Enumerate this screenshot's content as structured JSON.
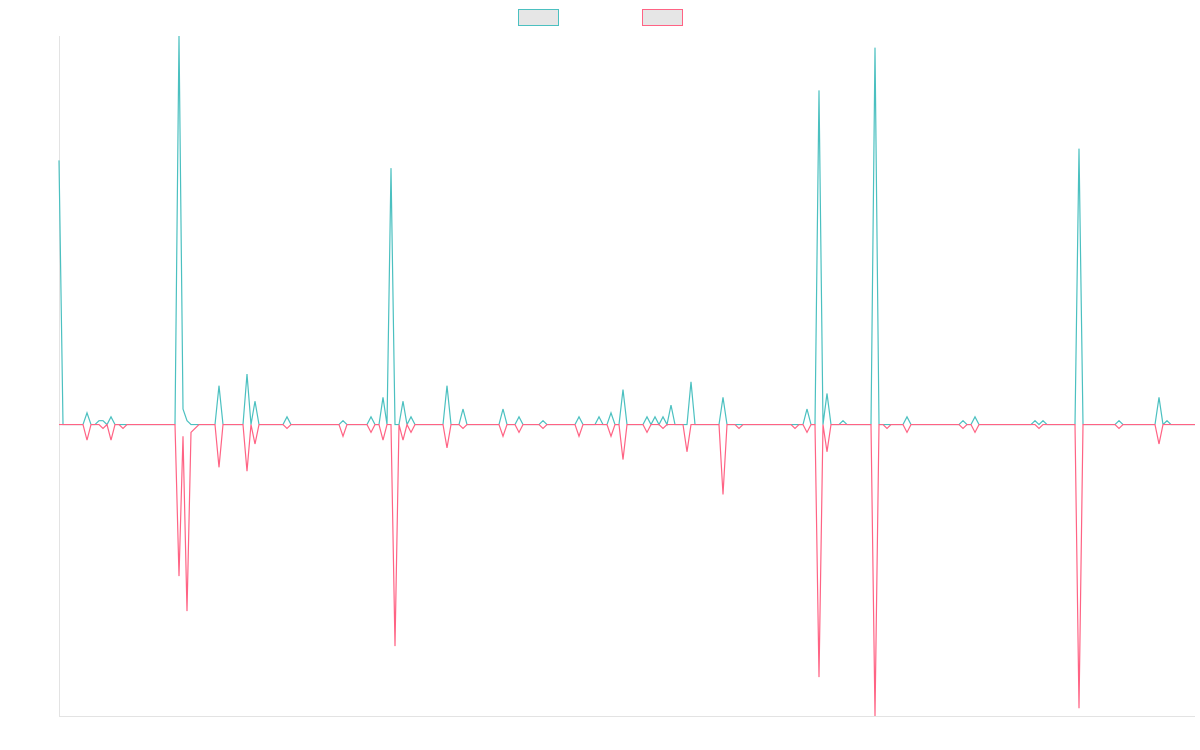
{
  "chart_data": {
    "type": "line",
    "legend": "top",
    "ylim": [
      -75,
      100
    ],
    "series": [
      {
        "color": "#4bc0c0",
        "values": [
          68,
          0,
          0,
          0,
          0,
          0,
          0,
          3,
          0,
          0,
          1,
          1,
          0,
          2,
          0,
          0,
          0,
          0,
          0,
          0,
          0,
          0,
          0,
          0,
          0,
          0,
          0,
          0,
          0,
          0,
          100,
          4,
          1,
          0,
          0,
          0,
          0,
          0,
          0,
          0,
          10,
          0,
          0,
          0,
          0,
          0,
          0,
          13,
          0,
          6,
          0,
          0,
          0,
          0,
          0,
          0,
          0,
          2,
          0,
          0,
          0,
          0,
          0,
          0,
          0,
          0,
          0,
          0,
          0,
          0,
          0,
          1,
          0,
          0,
          0,
          0,
          0,
          0,
          2,
          0,
          0,
          7,
          0,
          66,
          0,
          0,
          6,
          0,
          2,
          0,
          0,
          0,
          0,
          0,
          0,
          0,
          0,
          10,
          0,
          0,
          0,
          4,
          0,
          0,
          0,
          0,
          0,
          0,
          0,
          0,
          0,
          4,
          0,
          0,
          0,
          2,
          0,
          0,
          0,
          0,
          0,
          1,
          0,
          0,
          0,
          0,
          0,
          0,
          0,
          0,
          2,
          0,
          0,
          0,
          0,
          2,
          0,
          0,
          3,
          0,
          0,
          9,
          0,
          0,
          0,
          0,
          0,
          2,
          0,
          2,
          0,
          2,
          0,
          5,
          0,
          0,
          0,
          0,
          11,
          0,
          0,
          0,
          0,
          0,
          0,
          0,
          7,
          0,
          0,
          0,
          0,
          0,
          0,
          0,
          0,
          0,
          0,
          0,
          0,
          0,
          0,
          0,
          0,
          0,
          0,
          0,
          0,
          4,
          0,
          0,
          86,
          0,
          8,
          0,
          0,
          0,
          1,
          0,
          0,
          0,
          0,
          0,
          0,
          0,
          97,
          0,
          0,
          0,
          0,
          0,
          0,
          0,
          2,
          0,
          0,
          0,
          0,
          0,
          0,
          0,
          0,
          0,
          0,
          0,
          0,
          0,
          1,
          0,
          0,
          2,
          0,
          0,
          0,
          0,
          0,
          0,
          0,
          0,
          0,
          0,
          0,
          0,
          0,
          0,
          1,
          0,
          1,
          0,
          0,
          0,
          0,
          0,
          0,
          0,
          0,
          71,
          0,
          0,
          0,
          0,
          0,
          0,
          0,
          0,
          0,
          1,
          0,
          0,
          0,
          0,
          0,
          0,
          0,
          0,
          0,
          7,
          0,
          1,
          0,
          0,
          0,
          0,
          0,
          0,
          0
        ]
      },
      {
        "color": "#ff6384",
        "values": [
          0,
          0,
          0,
          0,
          0,
          0,
          0,
          -4,
          0,
          0,
          0,
          -1,
          0,
          -4,
          0,
          0,
          -1,
          0,
          0,
          0,
          0,
          0,
          0,
          0,
          0,
          0,
          0,
          0,
          0,
          0,
          -39,
          -3,
          -48,
          -2,
          -1,
          0,
          0,
          0,
          0,
          0,
          -11,
          0,
          0,
          0,
          0,
          0,
          0,
          -12,
          0,
          -5,
          0,
          0,
          0,
          0,
          0,
          0,
          0,
          -1,
          0,
          0,
          0,
          0,
          0,
          0,
          0,
          0,
          0,
          0,
          0,
          0,
          0,
          -3,
          0,
          0,
          0,
          0,
          0,
          0,
          -2,
          0,
          0,
          -4,
          0,
          0,
          -57,
          0,
          -4,
          0,
          -2,
          0,
          0,
          0,
          0,
          0,
          0,
          0,
          0,
          -6,
          0,
          0,
          0,
          -1,
          0,
          0,
          0,
          0,
          0,
          0,
          0,
          0,
          0,
          -3,
          0,
          0,
          0,
          -2,
          0,
          0,
          0,
          0,
          0,
          -1,
          0,
          0,
          0,
          0,
          0,
          0,
          0,
          0,
          -3,
          0,
          0,
          0,
          0,
          0,
          0,
          0,
          -3,
          0,
          0,
          -9,
          0,
          0,
          0,
          0,
          0,
          -2,
          0,
          0,
          0,
          -1,
          0,
          0,
          0,
          0,
          0,
          -7,
          0,
          0,
          0,
          0,
          0,
          0,
          0,
          0,
          -18,
          0,
          0,
          0,
          -1,
          0,
          0,
          0,
          0,
          0,
          0,
          0,
          0,
          0,
          0,
          0,
          0,
          0,
          -1,
          0,
          0,
          -2,
          0,
          0,
          -65,
          0,
          -7,
          0,
          0,
          0,
          0,
          0,
          0,
          0,
          0,
          0,
          0,
          0,
          -75,
          0,
          0,
          -1,
          0,
          0,
          0,
          0,
          -2,
          0,
          0,
          0,
          0,
          0,
          0,
          0,
          0,
          0,
          0,
          0,
          0,
          0,
          -1,
          0,
          0,
          -2,
          0,
          0,
          0,
          0,
          0,
          0,
          0,
          0,
          0,
          0,
          0,
          0,
          0,
          0,
          0,
          -1,
          0,
          0,
          0,
          0,
          0,
          0,
          0,
          0,
          0,
          -73,
          0,
          0,
          0,
          0,
          0,
          0,
          0,
          0,
          0,
          -1,
          0,
          0,
          0,
          0,
          0,
          0,
          0,
          0,
          0,
          -5,
          0,
          0,
          0,
          0,
          0,
          0,
          0,
          0,
          0
        ]
      }
    ]
  }
}
